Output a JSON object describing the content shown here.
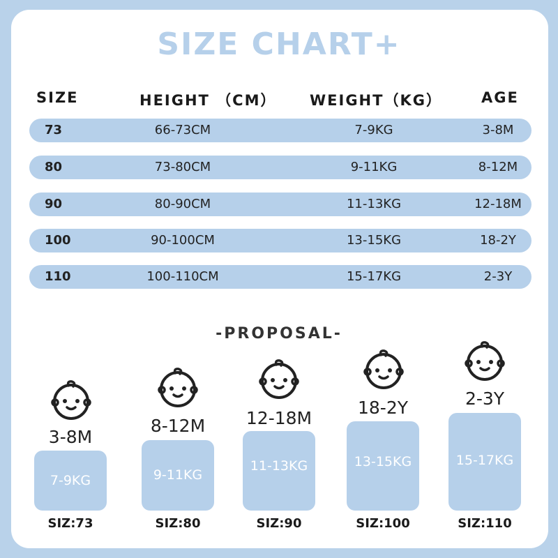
{
  "title": "SIZE CHART+",
  "headers": {
    "size": "SIZE",
    "height": "HEIGHT （CM）",
    "weight": "WEIGHT（KG）",
    "age": "AGE"
  },
  "rows": [
    {
      "size": "73",
      "height": "66-73CM",
      "weight": "7-9KG",
      "age": "3-8M"
    },
    {
      "size": "80",
      "height": "73-80CM",
      "weight": "9-11KG",
      "age": "8-12M"
    },
    {
      "size": "90",
      "height": "80-90CM",
      "weight": "11-13KG",
      "age": "12-18M"
    },
    {
      "size": "100",
      "height": "90-100CM",
      "weight": "13-15KG",
      "age": "18-2Y"
    },
    {
      "size": "110",
      "height": "100-110CM",
      "weight": "15-17KG",
      "age": "2-3Y"
    }
  ],
  "proposal": {
    "heading": "-PROPOSAL-",
    "items": [
      {
        "age": "3-8M",
        "weight": "7-9KG",
        "size": "SIZ:73"
      },
      {
        "age": "8-12M",
        "weight": "9-11KG",
        "size": "SIZ:80"
      },
      {
        "age": "12-18M",
        "weight": "11-13KG",
        "size": "SIZ:90"
      },
      {
        "age": "18-2Y",
        "weight": "13-15KG",
        "size": "SIZ:100"
      },
      {
        "age": "2-3Y",
        "weight": "15-17KG",
        "size": "SIZ:110"
      }
    ]
  },
  "colors": {
    "background": "#b9d2ea",
    "accent": "#b6d0ea",
    "text": "#1a1a1a"
  },
  "icons": [
    "baby-face-icon"
  ]
}
